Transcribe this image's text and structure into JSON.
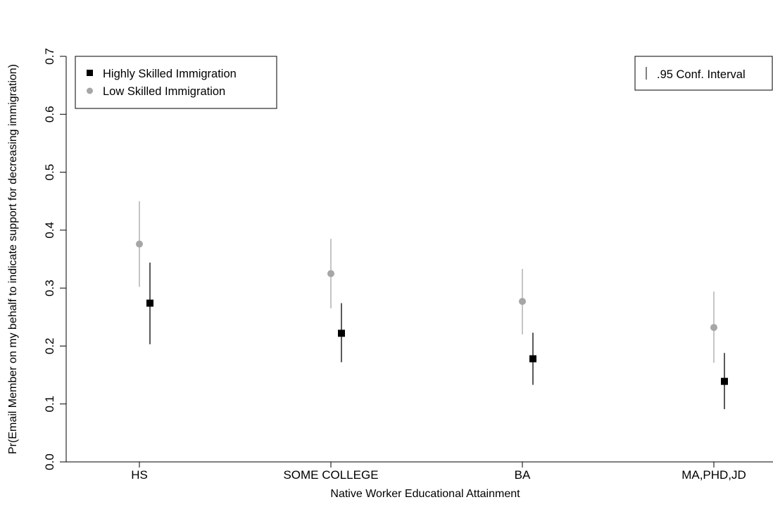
{
  "chart_data": {
    "type": "scatter",
    "title": "",
    "xlabel": "Native Worker Educational Attainment",
    "ylabel": "Pr(Email Member on my behalf to indicate support for decreasing immigration)",
    "categories": [
      "HS",
      "SOME COLLEGE",
      "BA",
      "MA,PHD,JD"
    ],
    "ylim": [
      0,
      0.7
    ],
    "yticks": [
      "0.0",
      "0.1",
      "0.2",
      "0.3",
      "0.4",
      "0.5",
      "0.6",
      "0.7"
    ],
    "grid": false,
    "legend": {
      "placement": "top-left",
      "entries": [
        "Highly Skilled Immigration",
        "Low Skilled Immigration"
      ]
    },
    "ci_legend": {
      "placement": "top-right",
      "label": ".95 Conf. Interval"
    },
    "series": [
      {
        "name": "Highly Skilled Immigration",
        "marker": "square",
        "color": "#000000",
        "values": [
          0.274,
          0.222,
          0.178,
          0.139
        ],
        "ci_low": [
          0.203,
          0.172,
          0.133,
          0.091
        ],
        "ci_high": [
          0.344,
          0.274,
          0.223,
          0.188
        ]
      },
      {
        "name": "Low Skilled Immigration",
        "marker": "circle",
        "color": "#a6a6a6",
        "values": [
          0.376,
          0.325,
          0.277,
          0.232
        ],
        "ci_low": [
          0.302,
          0.265,
          0.22,
          0.171
        ],
        "ci_high": [
          0.45,
          0.385,
          0.333,
          0.294
        ]
      }
    ]
  }
}
